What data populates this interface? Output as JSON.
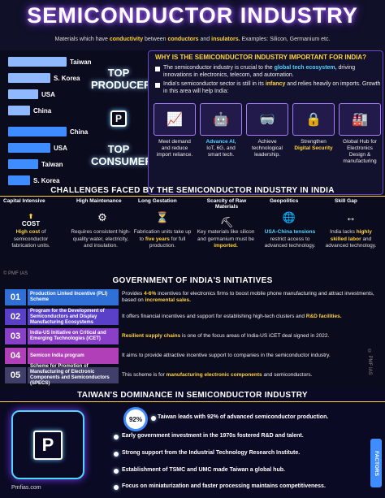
{
  "title": "SEMICONDUCTOR INDUSTRY",
  "subtitle": {
    "pre": "Materials which have ",
    "b1": "conductivity",
    "mid1": " between ",
    "b2": "conductors",
    "mid2": " and ",
    "b3": "insulators.",
    "post": " Examples: Silicon, Germanium etc."
  },
  "producer": {
    "title_1": "TOP",
    "title_2": "PRODUCER",
    "countries": [
      {
        "name": "Taiwan",
        "share": 1.0
      },
      {
        "name": "S. Korea",
        "share": 0.72
      },
      {
        "name": "USA",
        "share": 0.52
      },
      {
        "name": "China",
        "share": 0.38
      }
    ]
  },
  "consumer": {
    "title_1": "TOP",
    "title_2": "CONSUMER",
    "countries": [
      {
        "name": "China",
        "share": 1.0
      },
      {
        "name": "USA",
        "share": 0.72
      },
      {
        "name": "Taiwan",
        "share": 0.52
      },
      {
        "name": "S. Korea",
        "share": 0.38
      }
    ]
  },
  "why": {
    "heading": "WHY IS THE SEMICONDUCTOR INDUSTRY IMPORTANT FOR INDIA?",
    "b1_pre": "The semiconductor industry is crucial to the ",
    "b1_hl": "global tech ecosystem,",
    "b1_post": " driving innovations in electronics, telecom, and automation.",
    "b2_pre": "India's semiconductor sector is still in its ",
    "b2_hl": "infancy",
    "b2_post": " and relies heavily on imports. Growth in this area will help India:",
    "cards": [
      {
        "l1": "Meet demand",
        "l2": "and reduce",
        "l3": "import reliance."
      },
      {
        "hl": "Advance AI,",
        "l2": "IoT, 6G, and",
        "l3": "smart tech."
      },
      {
        "l1": "Achieve",
        "l2": "technological",
        "l3": "leadership."
      },
      {
        "l1": "Strengthen",
        "hl": "Digital Security"
      },
      {
        "l1": "Global Hub for",
        "l2": "Electronics",
        "l3": "Design &",
        "l4": "manufacturing"
      }
    ]
  },
  "challenges": {
    "heading": "CHALLENGES FACED BY THE SEMICONDUCTOR INDUSTRY IN INDIA",
    "items": [
      {
        "head": "Capital Intensive",
        "icon_label": "COST",
        "hl": "High cost",
        "t2": " of semiconductor fabrication units."
      },
      {
        "head": "High Maintenance",
        "t1": "Requires consistent high-quality water, electricity, and insulation."
      },
      {
        "head": "Long Gestation",
        "t1": "Fabrication units take up to ",
        "hl": "five years",
        "t2": " for full production."
      },
      {
        "head": "Scarcity of Raw Materials",
        "t1": "Key materials like silicon and germanium must be ",
        "hl": "imported."
      },
      {
        "head": "Geopolitics",
        "hl": "USA-China tensions",
        "t2": " restrict access to advanced technology."
      },
      {
        "head": "Skill Gap",
        "t1": "India lacks ",
        "hl": "highly skilled labor",
        "t2": " and advanced technology."
      }
    ]
  },
  "watermark": "© PMF IAS",
  "govt": {
    "heading": "GOVERNMENT OF INDIA'S INITIATIVES",
    "items": [
      {
        "num": "01",
        "name": "Production Linked Incentive (PLI) Scheme",
        "d1": "Provides ",
        "hl": "4-6%",
        "d2": " incentives for electronics firms to boost mobile phone manufacturing and attract investments, based on ",
        "hl2": "incremental sales."
      },
      {
        "num": "02",
        "name": "Program for the Development of Semiconductors and Display Manufacturing Ecosystems",
        "d1": "It offers financial incentives and support for establishing high-tech clusters and ",
        "hl": "R&D facilities."
      },
      {
        "num": "03",
        "name": "India-US Initiative on Critical and Emerging Technologies (iCET)",
        "hl": "Resilient supply chains",
        "d2": " is one of the focus areas of India-US iCET deal signed in 2022."
      },
      {
        "num": "04",
        "name": "Semicon India program",
        "d1": "It aims to provide attractive incentive support to companies in the semiconductor industry."
      },
      {
        "num": "05",
        "name": "Scheme for Promotion of Manufacturing of Electronic Components and Semiconductors (SPECS)",
        "d1": "This scheme is for ",
        "hl": "manufacturing electronic components",
        "d2": " and semiconductors."
      }
    ]
  },
  "taiwan": {
    "heading": "TAIWAN'S DOMINANCE IN SEMICONDUCTOR INDUSTRY",
    "pct": "92%",
    "pct_value": 92,
    "lines": [
      "Taiwan leads with 92% of advanced semiconductor production.",
      "Early government investment in the 1970s fostered R&D and talent.",
      "Strong support from the Industrial Technology Research Institute.",
      "Establishment of TSMC and UMC made Taiwan a global hub.",
      "Focus on miniaturization and faster processing maintains competitiveness."
    ],
    "factors_label": "FACTORS",
    "site": "Pmfias.com",
    "side_watermark": "© PMF IAS"
  },
  "colors": {
    "producer_bar": "#8fb8ff",
    "consumer_bar": "#3f8cff",
    "accent": "#ffd23a",
    "cyan": "#4fd6ff",
    "purple": "#7a3cff"
  },
  "logo_letter": "P"
}
